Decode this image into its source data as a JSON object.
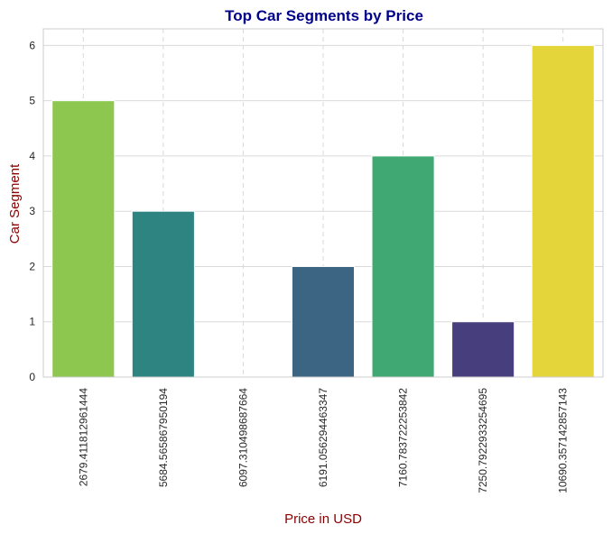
{
  "chart_data": {
    "type": "bar",
    "title": "Top Car Segments by Price",
    "xlabel": "Price in USD",
    "ylabel": "Car Segment",
    "categories": [
      "2679.411812961444",
      "5684.565867950194",
      "6097.310498687664",
      "6191.056294463347",
      "7160.783722253842",
      "7250.7922933254695",
      "10690.357142857143"
    ],
    "values": [
      5,
      3,
      0,
      2,
      4,
      1,
      6
    ],
    "bar_colors": [
      "#8dc74f",
      "#2e8480",
      "#3e4989",
      "#3c6584",
      "#3fa873",
      "#473f7d",
      "#e4d53a"
    ],
    "ylim": [
      0,
      6.3
    ],
    "yticks": [
      0,
      1,
      2,
      3,
      4,
      5,
      6
    ],
    "grid": true,
    "title_color": "#00008b",
    "label_color": "#8b0000"
  }
}
